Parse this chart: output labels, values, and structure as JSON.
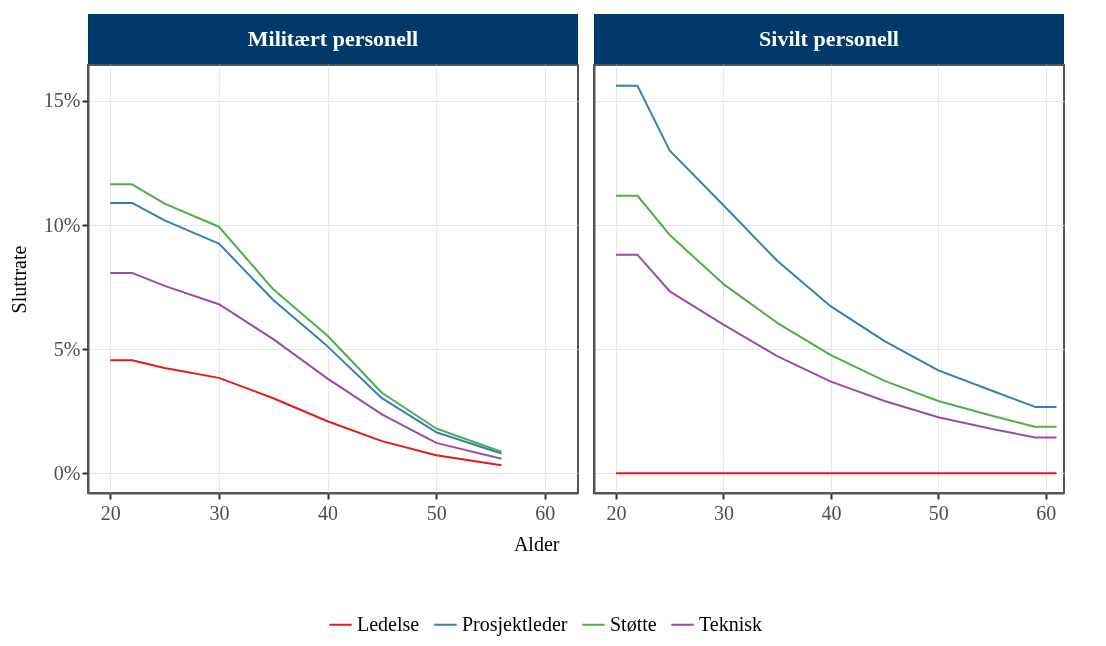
{
  "chart_data": [
    {
      "type": "line",
      "title": "Militært personell",
      "xlabel": "Alder",
      "ylabel": "Sluttrate",
      "xlim": [
        17.95,
        63.05
      ],
      "xticks": [
        20,
        30,
        40,
        50,
        60
      ],
      "ylim": [
        -0.8,
        16.45
      ],
      "yticks": [
        {
          "value": 0,
          "label": "0%"
        },
        {
          "value": 5,
          "label": "5%"
        },
        {
          "value": 10,
          "label": "10%"
        },
        {
          "value": 15,
          "label": "15%"
        }
      ],
      "grid": true,
      "legend": "bottom",
      "tick_labels": "xy",
      "series": [
        {
          "name": "Ledelse",
          "color": "#e41a1c",
          "x": [
            20,
            22,
            25,
            30,
            35,
            40,
            45,
            50,
            56
          ],
          "values": [
            4.55,
            4.55,
            4.24,
            3.84,
            3.02,
            2.09,
            1.29,
            0.72,
            0.32
          ]
        },
        {
          "name": "Prosjektleder",
          "color": "#377eb8",
          "x": [
            20,
            22,
            25,
            30,
            35,
            40,
            45,
            50,
            56
          ],
          "values": [
            10.89,
            10.89,
            10.19,
            9.25,
            6.98,
            5.11,
            3.02,
            1.65,
            0.79
          ]
        },
        {
          "name": "Støtte",
          "color": "#4daf4a",
          "x": [
            20,
            22,
            25,
            30,
            35,
            40,
            45,
            50,
            56
          ],
          "values": [
            11.64,
            11.64,
            10.86,
            9.93,
            7.41,
            5.54,
            3.24,
            1.8,
            0.86
          ]
        },
        {
          "name": "Teknisk",
          "color": "#984ea3",
          "x": [
            20,
            22,
            25,
            30,
            35,
            40,
            45,
            50,
            56
          ],
          "values": [
            8.07,
            8.07,
            7.55,
            6.81,
            5.4,
            3.81,
            2.37,
            1.22,
            0.58
          ]
        }
      ]
    },
    {
      "type": "line",
      "title": "Sivilt personell",
      "xlim": [
        17.95,
        61.7
      ],
      "xticks": [
        20,
        30,
        40,
        50,
        60
      ],
      "ylim": [
        -0.8,
        16.45
      ],
      "yticks": [
        {
          "value": 0,
          "label": null
        },
        {
          "value": 5,
          "label": null
        },
        {
          "value": 10,
          "label": null
        },
        {
          "value": 15,
          "label": null
        }
      ],
      "grid": true,
      "tick_labels": "x",
      "series": [
        {
          "color": "#e41a1c",
          "x": [
            20,
            61
          ],
          "values": [
            0,
            0
          ]
        },
        {
          "color": "#377eb8",
          "x": [
            20,
            22,
            25,
            30,
            35,
            40,
            45,
            50,
            55,
            59,
            61
          ],
          "values": [
            15.61,
            15.61,
            13.0,
            10.8,
            8.56,
            6.72,
            5.32,
            4.14,
            3.32,
            2.67,
            2.67
          ]
        },
        {
          "color": "#4daf4a",
          "x": [
            20,
            22,
            25,
            30,
            35,
            40,
            45,
            50,
            55,
            59,
            61
          ],
          "values": [
            11.18,
            11.18,
            9.6,
            7.62,
            6.06,
            4.76,
            3.72,
            2.91,
            2.31,
            1.87,
            1.87
          ]
        },
        {
          "color": "#984ea3",
          "x": [
            20,
            22,
            25,
            30,
            35,
            40,
            45,
            50,
            55,
            59,
            61
          ],
          "values": [
            8.8,
            8.8,
            7.33,
            5.99,
            4.72,
            3.69,
            2.91,
            2.25,
            1.78,
            1.44,
            1.44
          ]
        }
      ]
    }
  ]
}
